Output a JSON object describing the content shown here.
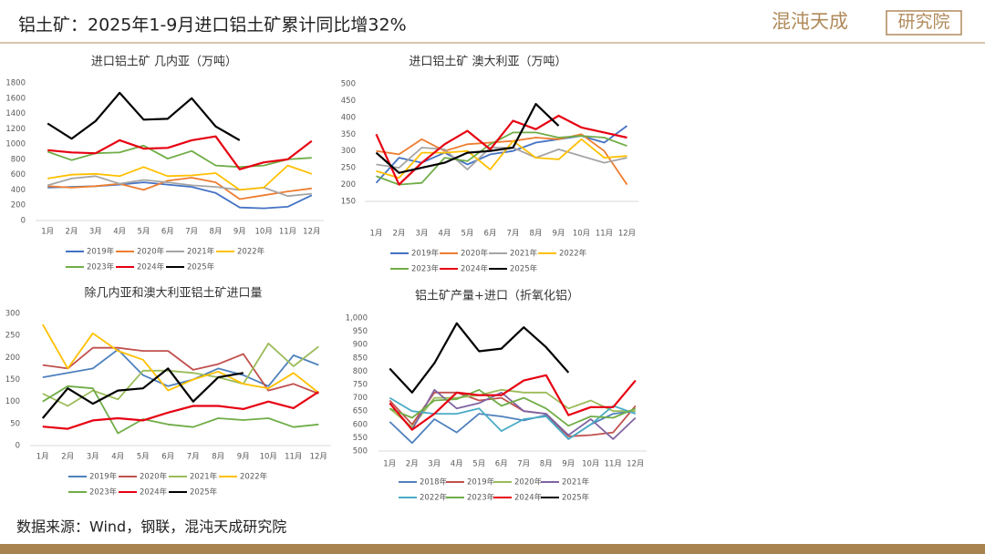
{
  "header": {
    "title": "铝土矿：2025年1-9月进口铝土矿累计同比增32%"
  },
  "logo": {
    "name": "混沌天成",
    "unit": "研究院"
  },
  "source": "数据来源：Wind，钢联，混沌天成研究院",
  "chart_data": [
    {
      "type": "line",
      "title": "进口铝土矿 几内亚（万吨）",
      "categories": [
        "1月",
        "2月",
        "3月",
        "4月",
        "5月",
        "6月",
        "7月",
        "8月",
        "9月",
        "10月",
        "11月",
        "12月"
      ],
      "ylim": [
        0,
        1800
      ],
      "yticks": [
        0,
        200,
        400,
        600,
        800,
        1000,
        1200,
        1400,
        1600,
        1800
      ],
      "grid": false,
      "series": [
        {
          "name": "2019年",
          "color": "#4472c4",
          "values": [
            430,
            440,
            450,
            470,
            500,
            470,
            440,
            360,
            170,
            160,
            180,
            330
          ]
        },
        {
          "name": "2020年",
          "color": "#ed7d31",
          "values": [
            450,
            430,
            450,
            480,
            400,
            520,
            560,
            500,
            280,
            330,
            380,
            420
          ]
        },
        {
          "name": "2021年",
          "color": "#a5a5a5",
          "values": [
            460,
            550,
            580,
            480,
            530,
            500,
            460,
            440,
            400,
            430,
            320,
            350
          ]
        },
        {
          "name": "2022年",
          "color": "#ffc000",
          "values": [
            550,
            600,
            610,
            580,
            700,
            580,
            590,
            620,
            400,
            430,
            720,
            610
          ]
        },
        {
          "name": "2023年",
          "color": "#70ad47",
          "values": [
            900,
            790,
            880,
            890,
            980,
            810,
            910,
            720,
            700,
            720,
            800,
            820
          ]
        },
        {
          "name": "2024年",
          "color": "#e60012",
          "values": [
            920,
            890,
            880,
            1050,
            940,
            950,
            1050,
            1100,
            670,
            760,
            800,
            1040
          ]
        },
        {
          "name": "2025年",
          "color": "#000000",
          "values": [
            1270,
            1070,
            1300,
            1670,
            1320,
            1330,
            1600,
            1230,
            1050,
            null,
            null,
            null
          ]
        }
      ]
    },
    {
      "type": "line",
      "title": "进口铝土矿 澳大利亚（万吨）",
      "categories": [
        "1月",
        "2月",
        "3月",
        "4月",
        "5月",
        "6月",
        "7月",
        "8月",
        "9月",
        "10月",
        "11月",
        "12月"
      ],
      "ylim": [
        150,
        500
      ],
      "yticks": [
        150,
        200,
        250,
        300,
        350,
        400,
        450,
        500
      ],
      "grid": false,
      "series": [
        {
          "name": "2019年",
          "color": "#4472c4",
          "values": [
            205,
            280,
            265,
            295,
            260,
            290,
            300,
            325,
            335,
            345,
            325,
            375
          ]
        },
        {
          "name": "2020年",
          "color": "#ed7d31",
          "values": [
            300,
            290,
            335,
            300,
            320,
            325,
            330,
            340,
            335,
            350,
            300,
            200
          ]
        },
        {
          "name": "2021年",
          "color": "#a5a5a5",
          "values": [
            260,
            250,
            310,
            305,
            245,
            310,
            310,
            280,
            305,
            285,
            265,
            280
          ]
        },
        {
          "name": "2022年",
          "color": "#ffc000",
          "values": [
            240,
            220,
            295,
            295,
            300,
            245,
            330,
            280,
            275,
            335,
            280,
            285
          ]
        },
        {
          "name": "2023年",
          "color": "#70ad47",
          "values": [
            225,
            200,
            205,
            280,
            270,
            320,
            355,
            355,
            340,
            345,
            340,
            315
          ]
        },
        {
          "name": "2024年",
          "color": "#e60012",
          "values": [
            350,
            200,
            265,
            320,
            360,
            305,
            390,
            365,
            405,
            370,
            355,
            340
          ]
        },
        {
          "name": "2025年",
          "color": "#000000",
          "values": [
            295,
            235,
            250,
            265,
            295,
            300,
            310,
            440,
            375,
            null,
            null,
            null
          ]
        }
      ]
    },
    {
      "type": "line",
      "title": "除几内亚和澳大利亚铝土矿进口量",
      "categories": [
        "1月",
        "2月",
        "3月",
        "4月",
        "5月",
        "6月",
        "7月",
        "8月",
        "9月",
        "10月",
        "11月",
        "12月"
      ],
      "ylim": [
        0,
        300
      ],
      "yticks": [
        0,
        50,
        100,
        150,
        200,
        250,
        300
      ],
      "grid": false,
      "series": [
        {
          "name": "2019年",
          "color": "#4f81bd",
          "values": [
            155,
            165,
            175,
            218,
            160,
            135,
            150,
            175,
            160,
            135,
            205,
            183
          ]
        },
        {
          "name": "2020年",
          "color": "#c0504d",
          "values": [
            183,
            175,
            222,
            222,
            215,
            215,
            172,
            185,
            208,
            125,
            140,
            118
          ]
        },
        {
          "name": "2021年",
          "color": "#9bbb59",
          "values": [
            118,
            90,
            125,
            105,
            170,
            170,
            165,
            155,
            140,
            232,
            180,
            225
          ]
        },
        {
          "name": "2022年",
          "color": "#ffc000",
          "values": [
            275,
            175,
            255,
            215,
            195,
            125,
            150,
            168,
            140,
            130,
            165,
            120
          ]
        },
        {
          "name": "2023年",
          "color": "#70ad47",
          "values": [
            100,
            135,
            130,
            28,
            60,
            48,
            42,
            62,
            58,
            62,
            42,
            48
          ]
        },
        {
          "name": "2024年",
          "color": "#e60012",
          "values": [
            43,
            38,
            57,
            62,
            57,
            75,
            90,
            90,
            83,
            100,
            85,
            122
          ]
        },
        {
          "name": "2025年",
          "color": "#000000",
          "values": [
            62,
            130,
            95,
            125,
            130,
            175,
            100,
            155,
            165,
            null,
            null,
            null
          ]
        }
      ]
    },
    {
      "type": "line",
      "title": "铝土矿产量+进口（折氧化铝）",
      "categories": [
        "1月",
        "2月",
        "3月",
        "4月",
        "5月",
        "6月",
        "7月",
        "8月",
        "9月",
        "10月",
        "11月",
        "12月"
      ],
      "ylim": [
        500,
        1000
      ],
      "yticks": [
        500,
        550,
        600,
        650,
        700,
        750,
        800,
        850,
        900,
        950,
        {
          "value": 1000,
          "label": "1,000"
        }
      ],
      "grid": false,
      "series": [
        {
          "name": "2018年",
          "color": "#4f81bd",
          "values": [
            610,
            530,
            620,
            570,
            640,
            630,
            615,
            635,
            545,
            600,
            640,
            650
          ]
        },
        {
          "name": "2019年",
          "color": "#c0504d",
          "values": [
            690,
            600,
            720,
            720,
            690,
            700,
            650,
            640,
            555,
            560,
            570,
            670
          ]
        },
        {
          "name": "2020年",
          "color": "#9bbb59",
          "values": [
            660,
            590,
            700,
            700,
            710,
            730,
            720,
            720,
            660,
            690,
            650,
            650
          ]
        },
        {
          "name": "2021年",
          "color": "#8064a2",
          "values": [
            680,
            580,
            730,
            660,
            680,
            720,
            650,
            640,
            560,
            620,
            545,
            625
          ]
        },
        {
          "name": "2022年",
          "color": "#4bacc6",
          "values": [
            700,
            650,
            640,
            640,
            660,
            575,
            620,
            630,
            545,
            600,
            670,
            640
          ]
        },
        {
          "name": "2023年",
          "color": "#70ad47",
          "values": [
            660,
            625,
            690,
            695,
            730,
            670,
            700,
            660,
            595,
            630,
            625,
            660
          ]
        },
        {
          "name": "2024年",
          "color": "#e60012",
          "values": [
            680,
            580,
            640,
            720,
            710,
            710,
            765,
            785,
            635,
            665,
            665,
            765
          ]
        },
        {
          "name": "2025年",
          "color": "#000000",
          "values": [
            810,
            720,
            830,
            980,
            875,
            885,
            965,
            890,
            795,
            null,
            null,
            null
          ]
        }
      ]
    }
  ]
}
